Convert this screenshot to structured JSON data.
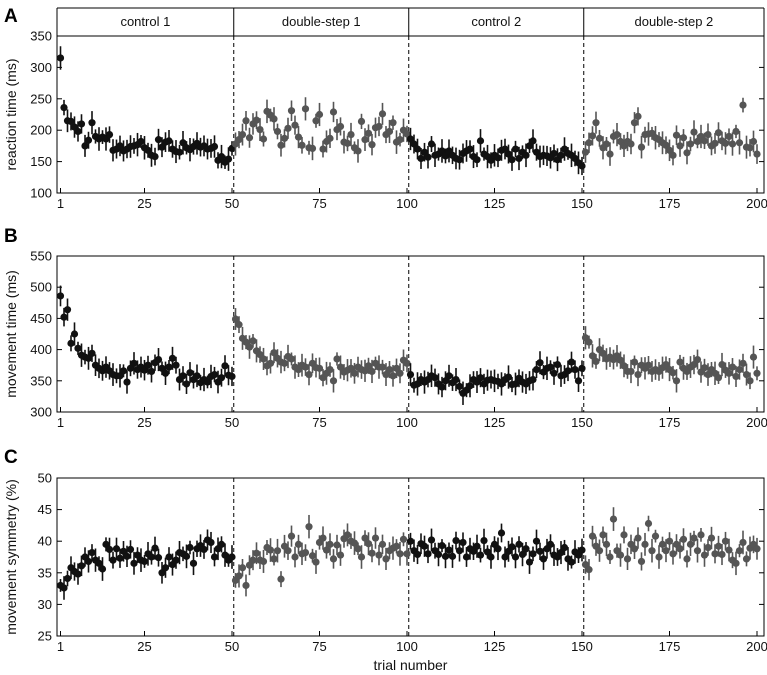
{
  "chart_data": [
    {
      "type": "scatter",
      "panel_letter": "A",
      "ylabel": "reaction time (ms)",
      "xlabel": "",
      "xlim": [
        0,
        202
      ],
      "ylim": [
        100,
        350
      ],
      "xticks": [
        1,
        25,
        50,
        75,
        100,
        125,
        150,
        175,
        200
      ],
      "yticks": [
        100,
        150,
        200,
        250,
        300,
        350
      ],
      "block_boundaries": [
        50.5,
        100.5,
        150.5
      ],
      "blocks": [
        "control 1",
        "double-step 1",
        "control 2",
        "double-step 2"
      ],
      "block_ranges": [
        [
          0,
          50.5
        ],
        [
          50.5,
          100.5
        ],
        [
          100.5,
          150.5
        ],
        [
          150.5,
          202
        ]
      ],
      "error_bars": true,
      "colors": {
        "control": "#111111",
        "double_step": "#555555"
      },
      "segments": [
        {
          "block": "control 1",
          "x_start": 1,
          "y": [
            315,
            236,
            215,
            214,
            205,
            198,
            210,
            175,
            184,
            212,
            190,
            186,
            189,
            186,
            193,
            168,
            170,
            175,
            167,
            170,
            174,
            175,
            177,
            182,
            172,
            168,
            160,
            158,
            185,
            173,
            181,
            183,
            170,
            166,
            165,
            180,
            172,
            169,
            174,
            179,
            173,
            175,
            170,
            171,
            174,
            152,
            158,
            149,
            154,
            171
          ]
        },
        {
          "block": "double-step 1",
          "x_start": 51,
          "y": [
            178,
            185,
            193,
            215,
            188,
            210,
            216,
            201,
            186,
            230,
            224,
            218,
            198,
            176,
            187,
            203,
            231,
            208,
            189,
            176,
            234,
            172,
            171,
            215,
            225,
            170,
            182,
            187,
            229,
            201,
            206,
            181,
            179,
            193,
            172,
            167,
            214,
            185,
            195,
            177,
            204,
            206,
            226,
            193,
            198,
            212,
            181,
            185,
            200,
            194
          ]
        },
        {
          "block": "control 2",
          "x_start": 101,
          "y": [
            186,
            178,
            170,
            155,
            165,
            157,
            178,
            160,
            162,
            167,
            159,
            167,
            160,
            155,
            153,
            163,
            167,
            170,
            158,
            153,
            183,
            162,
            158,
            152,
            160,
            156,
            168,
            170,
            162,
            153,
            170,
            155,
            165,
            160,
            175,
            183,
            165,
            158,
            160,
            159,
            156,
            163,
            153,
            160,
            170,
            163,
            160,
            155,
            148,
            143
          ]
        },
        {
          "block": "double-step 2",
          "x_start": 151,
          "y": [
            165,
            180,
            191,
            212,
            187,
            172,
            178,
            162,
            190,
            193,
            182,
            175,
            182,
            178,
            212,
            222,
            173,
            193,
            194,
            195,
            188,
            185,
            180,
            176,
            168,
            160,
            192,
            175,
            188,
            164,
            178,
            197,
            182,
            190,
            183,
            193,
            175,
            179,
            196,
            183,
            179,
            190,
            178,
            198,
            180,
            240,
            173,
            172,
            182,
            162
          ]
        }
      ]
    },
    {
      "type": "scatter",
      "panel_letter": "B",
      "ylabel": "movement time (ms)",
      "xlabel": "",
      "xlim": [
        0,
        202
      ],
      "ylim": [
        300,
        550
      ],
      "xticks": [
        1,
        25,
        50,
        75,
        100,
        125,
        150,
        175,
        200
      ],
      "yticks": [
        300,
        350,
        400,
        450,
        500,
        550
      ],
      "block_boundaries": [
        50.5,
        100.5,
        150.5
      ],
      "error_bars": true,
      "colors": {
        "control": "#111111",
        "double_step": "#555555"
      },
      "segments": [
        {
          "block": "control 1",
          "x_start": 1,
          "y": [
            486,
            452,
            464,
            410,
            425,
            402,
            391,
            388,
            386,
            394,
            375,
            370,
            366,
            372,
            366,
            360,
            358,
            358,
            366,
            348,
            370,
            378,
            368,
            372,
            367,
            375,
            365,
            379,
            384,
            370,
            362,
            372,
            386,
            375,
            352,
            358,
            345,
            363,
            352,
            358,
            347,
            352,
            348,
            357,
            360,
            348,
            355,
            374,
            359,
            357
          ]
        },
        {
          "block": "double-step 1",
          "x_start": 51,
          "y": [
            449,
            440,
            418,
            412,
            404,
            414,
            398,
            392,
            385,
            374,
            378,
            395,
            386,
            380,
            378,
            389,
            385,
            372,
            368,
            375,
            372,
            360,
            378,
            371,
            370,
            355,
            362,
            368,
            350,
            385,
            372,
            364,
            367,
            370,
            362,
            372,
            368,
            366,
            374,
            365,
            378,
            372,
            372,
            360,
            368,
            358,
            370,
            362,
            383,
            378
          ]
        },
        {
          "block": "control 2",
          "x_start": 101,
          "y": [
            360,
            343,
            345,
            352,
            348,
            352,
            358,
            355,
            345,
            340,
            350,
            358,
            347,
            352,
            341,
            330,
            335,
            342,
            352,
            348,
            355,
            345,
            351,
            352,
            350,
            349,
            345,
            352,
            356,
            344,
            345,
            354,
            348,
            345,
            350,
            352,
            368,
            379,
            364,
            370,
            372,
            362,
            376,
            358,
            360,
            366,
            380,
            368,
            350,
            370
          ]
        },
        {
          "block": "double-step 2",
          "x_start": 151,
          "y": [
            419,
            412,
            390,
            381,
            400,
            394,
            385,
            388,
            384,
            390,
            383,
            374,
            365,
            365,
            380,
            360,
            375,
            370,
            375,
            365,
            368,
            365,
            371,
            376,
            368,
            363,
            350,
            380,
            370,
            365,
            372,
            376,
            384,
            364,
            371,
            360,
            368,
            362,
            355,
            376,
            367,
            362,
            372,
            357,
            368,
            378,
            360,
            350,
            388,
            362
          ]
        }
      ]
    },
    {
      "type": "scatter",
      "panel_letter": "C",
      "ylabel": "movement symmetry (%)",
      "xlabel": "trial number",
      "xlim": [
        0,
        202
      ],
      "ylim": [
        25,
        50
      ],
      "xticks": [
        1,
        25,
        50,
        75,
        100,
        125,
        150,
        175,
        200
      ],
      "yticks": [
        25,
        30,
        35,
        40,
        45,
        50
      ],
      "block_boundaries": [
        50.5,
        100.5,
        150.5
      ],
      "error_bars": true,
      "colors": {
        "control": "#111111",
        "double_step": "#555555"
      },
      "segments": [
        {
          "block": "control 1",
          "x_start": 1,
          "y": [
            33.0,
            32.6,
            34.1,
            35.8,
            35.2,
            34.8,
            36.1,
            37.5,
            36.8,
            38.2,
            37.0,
            36.5,
            35.6,
            39.5,
            38.7,
            37.0,
            38.8,
            37.3,
            38.4,
            37.6,
            38.7,
            36.5,
            37.8,
            37.0,
            36.8,
            38.0,
            37.5,
            38.9,
            37.4,
            35.0,
            35.8,
            37.5,
            36.3,
            37.0,
            38.2,
            38.0,
            37.6,
            39.0,
            36.5,
            38.8,
            39.3,
            38.7,
            40.2,
            39.8,
            37.5,
            38.8,
            39.5,
            37.8,
            37.0,
            37.5
          ]
        },
        {
          "block": "double-step 1",
          "x_start": 51,
          "y": [
            33.8,
            34.5,
            35.8,
            33.0,
            36.2,
            37.0,
            38.1,
            37.0,
            36.8,
            39.0,
            38.6,
            37.2,
            38.5,
            34.0,
            39.2,
            38.5,
            40.8,
            37.5,
            39.5,
            38.0,
            38.2,
            42.3,
            37.7,
            36.7,
            39.8,
            40.5,
            38.6,
            39.5,
            37.2,
            39.4,
            37.8,
            40.4,
            41.0,
            40.0,
            39.7,
            38.8,
            37.5,
            40.5,
            39.6,
            38.1,
            40.5,
            37.8,
            39.5,
            37.2,
            38.5,
            38.9,
            39.2,
            38.0,
            40.3,
            38.0
          ]
        },
        {
          "block": "control 2",
          "x_start": 101,
          "y": [
            40.0,
            38.5,
            37.9,
            39.6,
            39.2,
            38.0,
            40.2,
            38.5,
            37.9,
            39.3,
            37.6,
            38.6,
            37.6,
            40.1,
            38.5,
            39.8,
            37.5,
            38.8,
            38.4,
            39.2,
            37.8,
            40.1,
            38.3,
            37.5,
            39.5,
            38.8,
            41.3,
            37.5,
            38.4,
            39.1,
            37.5,
            39.5,
            37.9,
            38.8,
            36.7,
            38.0,
            40.0,
            38.4,
            37.2,
            38.8,
            39.5,
            37.8,
            37.5,
            38.2,
            39.0,
            37.2,
            36.7,
            38.3,
            37.8,
            38.6
          ]
        },
        {
          "block": "double-step 2",
          "x_start": 151,
          "y": [
            36.3,
            35.5,
            40.8,
            39.2,
            38.5,
            41.0,
            39.5,
            37.5,
            43.5,
            38.5,
            37.8,
            41.0,
            37.2,
            39.5,
            38.8,
            40.5,
            36.8,
            39.5,
            42.8,
            38.5,
            40.8,
            37.5,
            39.5,
            38.5,
            40.0,
            38.0,
            39.5,
            38.8,
            40.3,
            37.2,
            39.5,
            40.5,
            38.5,
            41.0,
            37.8,
            39.0,
            40.5,
            38.0,
            39.2,
            37.9,
            40.0,
            38.6,
            37.0,
            36.5,
            38.5,
            39.8,
            37.2,
            38.9,
            39.5,
            38.8
          ]
        }
      ]
    }
  ]
}
